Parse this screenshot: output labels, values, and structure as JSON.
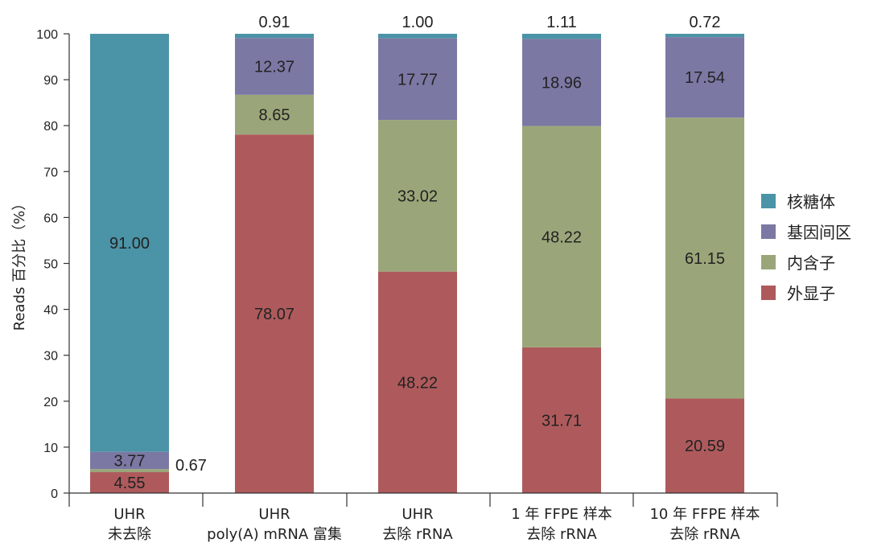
{
  "chart_data": {
    "type": "bar",
    "stacked": true,
    "ylabel": "Reads 百分比（%）",
    "ylim": [
      0,
      100
    ],
    "yticks": [
      0,
      10,
      20,
      30,
      40,
      50,
      60,
      70,
      80,
      90,
      100
    ],
    "categories": [
      [
        "UHR",
        "未去除"
      ],
      [
        "UHR",
        "poly(A) mRNA 富集"
      ],
      [
        "UHR",
        "去除 rRNA"
      ],
      [
        "1 年 FFPE 样本",
        "去除 rRNA"
      ],
      [
        "10 年 FFPE 样本",
        "去除 rRNA"
      ]
    ],
    "series": [
      {
        "name": "外显子",
        "color": "#ae5a5c",
        "values": [
          4.55,
          78.07,
          48.22,
          31.71,
          20.59
        ],
        "labels": [
          "4.55",
          "78.07",
          "48.22",
          "31.71",
          "20.59"
        ]
      },
      {
        "name": "内含子",
        "color": "#9aa679",
        "values": [
          0.67,
          8.65,
          33.02,
          48.22,
          61.15
        ],
        "labels": [
          "0.67",
          "8.65",
          "33.02",
          "48.22",
          "61.15"
        ]
      },
      {
        "name": "基因间区",
        "color": "#7b78a4",
        "values": [
          3.77,
          12.37,
          17.77,
          18.96,
          17.54
        ],
        "labels": [
          "3.77",
          "12.37",
          "17.77",
          "18.96",
          "17.54"
        ]
      },
      {
        "name": "核糖体",
        "color": "#4b93a6",
        "values": [
          91.0,
          0.91,
          1.0,
          1.11,
          0.72
        ],
        "labels": [
          "91.00",
          "0.91",
          "1.00",
          "1.11",
          "0.72"
        ]
      }
    ],
    "legend": {
      "position": "right",
      "entries": [
        {
          "name": "核糖体",
          "color": "#4b93a6"
        },
        {
          "name": "基因间区",
          "color": "#7b78a4"
        },
        {
          "name": "内含子",
          "color": "#9aa679"
        },
        {
          "name": "外显子",
          "color": "#ae5a5c"
        }
      ]
    },
    "grid": false
  }
}
